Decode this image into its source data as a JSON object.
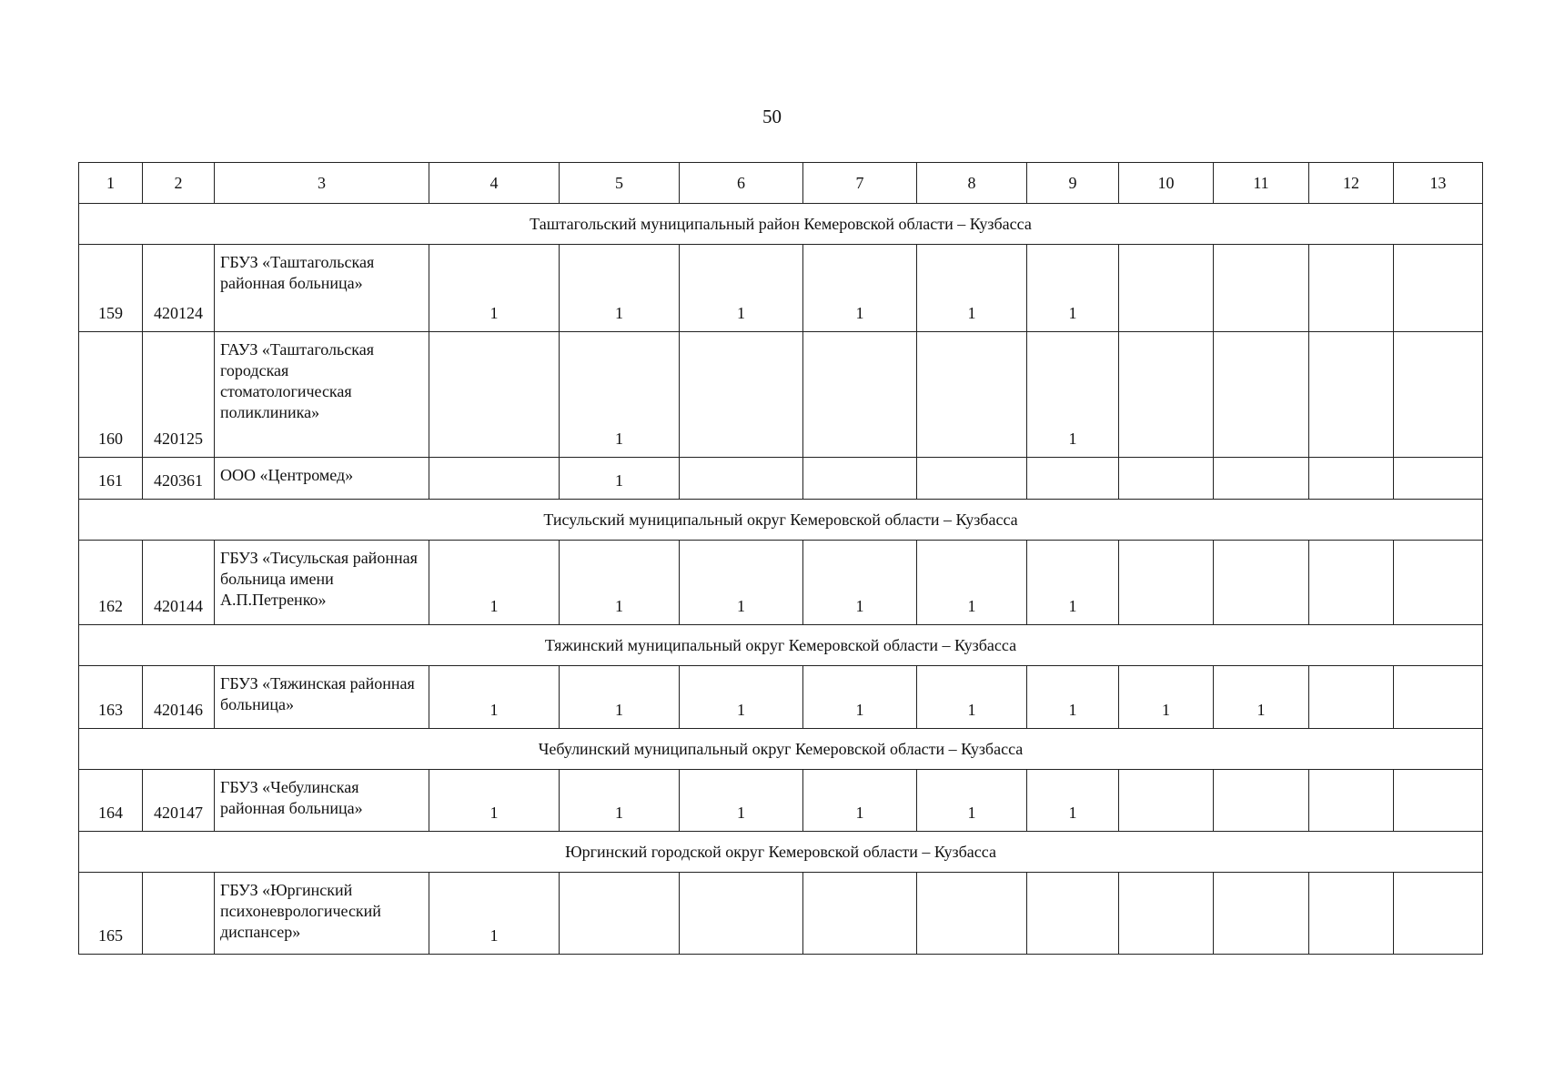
{
  "page_number": "50",
  "columns": [
    "1",
    "2",
    "3",
    "4",
    "5",
    "6",
    "7",
    "8",
    "9",
    "10",
    "11",
    "12",
    "13"
  ],
  "sections": [
    {
      "title": "Таштагольский муниципальный район Кемеровской области – Кузбасса",
      "rows": [
        {
          "no": "159",
          "code": "420124",
          "name": "ГБУЗ «Таштагольская районная больница»",
          "values": [
            "1",
            "1",
            "1",
            "1",
            "1",
            "1",
            "",
            "",
            "",
            ""
          ]
        },
        {
          "no": "160",
          "code": "420125",
          "name": "ГАУЗ «Таштагольская городская стоматологическая поликлиника»",
          "values": [
            "",
            "1",
            "",
            "",
            "",
            "1",
            "",
            "",
            "",
            ""
          ]
        },
        {
          "no": "161",
          "code": "420361",
          "name": "ООО «Центромед»",
          "values": [
            "",
            "1",
            "",
            "",
            "",
            "",
            "",
            "",
            "",
            ""
          ]
        }
      ]
    },
    {
      "title": "Тисульский муниципальный округ Кемеровской области – Кузбасса",
      "rows": [
        {
          "no": "162",
          "code": "420144",
          "name": "ГБУЗ «Тисульская районная больница имени А.П.Петренко»",
          "values": [
            "1",
            "1",
            "1",
            "1",
            "1",
            "1",
            "",
            "",
            "",
            ""
          ]
        }
      ]
    },
    {
      "title": "Тяжинский муниципальный округ Кемеровской области – Кузбасса",
      "rows": [
        {
          "no": "163",
          "code": "420146",
          "name": "ГБУЗ «Тяжинская районная больница»",
          "values": [
            "1",
            "1",
            "1",
            "1",
            "1",
            "1",
            "1",
            "1",
            "",
            ""
          ]
        }
      ]
    },
    {
      "title": "Чебулинский муниципальный округ Кемеровской области – Кузбасса",
      "rows": [
        {
          "no": "164",
          "code": "420147",
          "name": "ГБУЗ «Чебулинская районная больница»",
          "values": [
            "1",
            "1",
            "1",
            "1",
            "1",
            "1",
            "",
            "",
            "",
            ""
          ]
        }
      ]
    },
    {
      "title": "Юргинский городской округ Кемеровской области – Кузбасса",
      "rows": [
        {
          "no": "165",
          "code": "",
          "name": "ГБУЗ «Юргинский психоневрологический диспансер»",
          "values": [
            "1",
            "",
            "",
            "",
            "",
            "",
            "",
            "",
            "",
            ""
          ]
        }
      ]
    }
  ]
}
